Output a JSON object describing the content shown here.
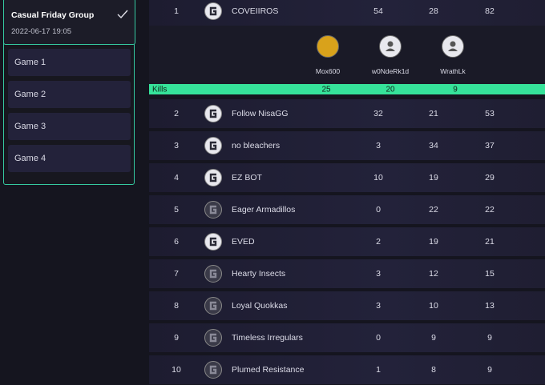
{
  "group": {
    "title": "Casual Friday Group",
    "date": "2022-06-17 19:05"
  },
  "games": [
    "Game 1",
    "Game 2",
    "Game 3",
    "Game 4"
  ],
  "leaderboard": {
    "rows": [
      {
        "rank": 1,
        "team": "COVEIIROS",
        "values": [
          54,
          28,
          82
        ]
      },
      {
        "rank": 2,
        "team": "Follow NisaGG",
        "values": [
          32,
          21,
          53
        ]
      },
      {
        "rank": 3,
        "team": "no bleachers",
        "values": [
          3,
          34,
          37
        ]
      },
      {
        "rank": 4,
        "team": "EZ BOT",
        "values": [
          10,
          19,
          29
        ]
      },
      {
        "rank": 5,
        "team": "Eager Armadillos",
        "values": [
          0,
          22,
          22
        ]
      },
      {
        "rank": 6,
        "team": "EVED",
        "values": [
          2,
          19,
          21
        ]
      },
      {
        "rank": 7,
        "team": "Hearty Insects",
        "values": [
          3,
          12,
          15
        ]
      },
      {
        "rank": 8,
        "team": "Loyal Quokkas",
        "values": [
          3,
          10,
          13
        ]
      },
      {
        "rank": 9,
        "team": "Timeless Irregulars",
        "values": [
          0,
          9,
          9
        ]
      },
      {
        "rank": 10,
        "team": "Plumed Resistance",
        "values": [
          1,
          8,
          9
        ]
      }
    ],
    "expanded": {
      "players": [
        "Mox600",
        "w0NdeRk1d",
        "WrathLk"
      ],
      "stat": "Kills",
      "values": [
        25,
        20,
        9
      ]
    }
  }
}
